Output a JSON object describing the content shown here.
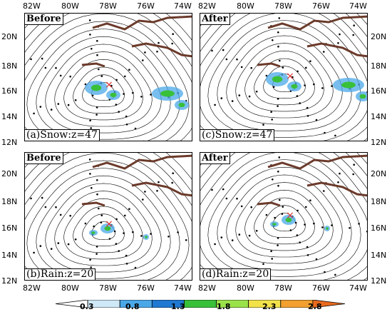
{
  "panels": [
    {
      "id": "a",
      "header": "Before",
      "label": "(a)Snow:z=47"
    },
    {
      "id": "c",
      "header": "After",
      "label": "(c)Snow:z=47"
    },
    {
      "id": "b",
      "header": "Before",
      "label": "(b)Rain:z=20"
    },
    {
      "id": "d",
      "header": "After",
      "label": "(d)Rain:z=20"
    }
  ],
  "lon_ticks": [
    "82W",
    "80W",
    "78W",
    "76W",
    "74W"
  ],
  "lat_ticks": [
    "20N",
    "18N",
    "16N",
    "14N",
    "12N"
  ],
  "colorbar": {
    "labels": [
      "0.3",
      "0.8",
      "1.3",
      "1.8",
      "2.3",
      "2.8"
    ],
    "colors": [
      "#ffffff",
      "#cfe8f7",
      "#4aa8e8",
      "#1f78d1",
      "#39c039",
      "#9be24a",
      "#f2e24a",
      "#f2a030",
      "#e86a1e"
    ]
  },
  "marker_symbol": "×",
  "colors": {
    "coast": "#6b3a2a",
    "stream": "#000000",
    "marker": "#e03030"
  }
}
